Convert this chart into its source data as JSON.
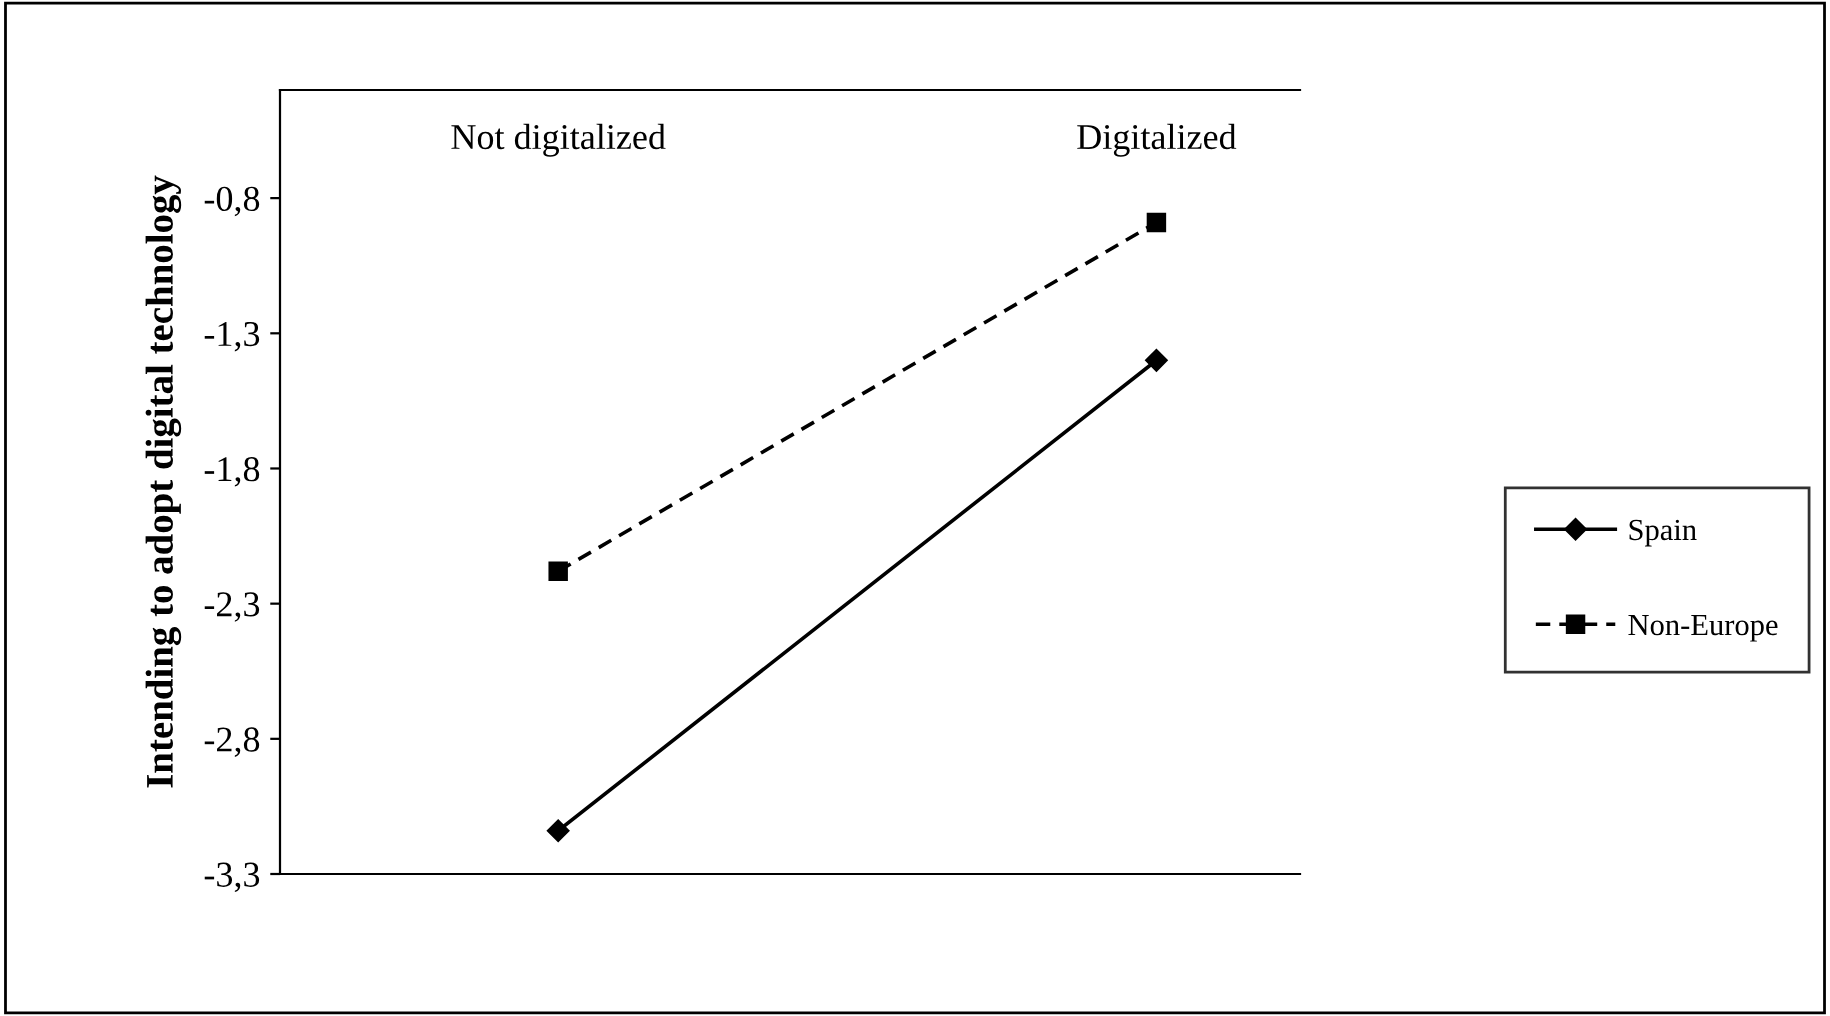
{
  "chart_data": {
    "type": "line",
    "ylabel": "Intending to adopt digital technology",
    "categories": [
      "Not digitalized",
      "Digitalized"
    ],
    "series": [
      {
        "name": "Spain",
        "color": "#000000",
        "values": [
          -3.14,
          -1.4
        ],
        "marker": "diamond",
        "line_style": "solid"
      },
      {
        "name": "Non-Europe",
        "color": "#000000",
        "values": [
          -2.18,
          -0.89
        ],
        "marker": "square",
        "line_style": "dashed"
      }
    ],
    "ylim": [
      -3.3,
      -0.4
    ],
    "yticks": [
      {
        "value": -3.3,
        "label": "-3,3"
      },
      {
        "value": -2.8,
        "label": "-2,8"
      },
      {
        "value": -2.3,
        "label": "-2,3"
      },
      {
        "value": -1.8,
        "label": "-1,8"
      },
      {
        "value": -1.3,
        "label": "-1,3"
      },
      {
        "value": -0.8,
        "label": "-0,8"
      }
    ],
    "grid": false,
    "legend": "right"
  }
}
